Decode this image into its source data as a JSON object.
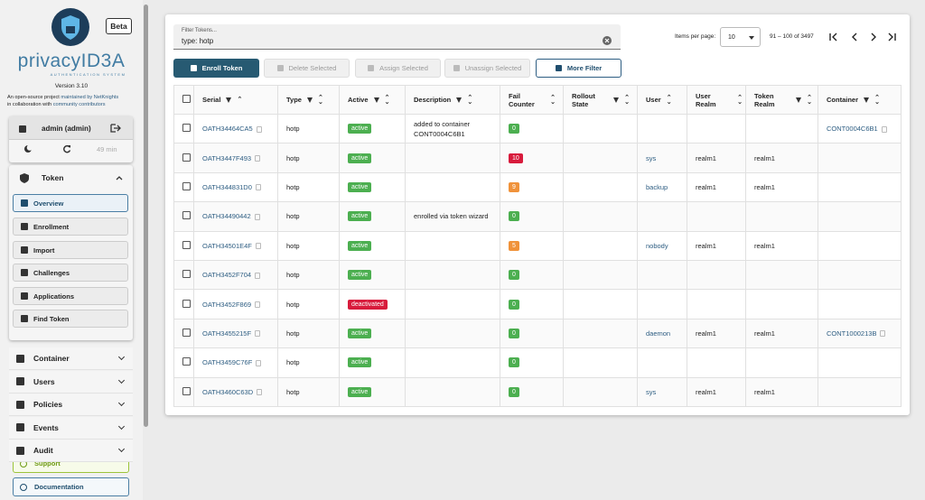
{
  "sidebar": {
    "beta": "Beta",
    "logo": "privacyID3A",
    "logo_subtitle": "AUTHENTICATION SYSTEM",
    "version": "Version 3.10",
    "about": {
      "text1": "An open-source project",
      "link1": "maintained by NetKnights",
      "text2": "in collaboration with",
      "link2": "community contributors"
    },
    "user": "admin (admin)",
    "session_timer": "49 min",
    "token_section": "Token",
    "token_items": [
      "Overview",
      "Enrollment",
      "Import",
      "Challenges",
      "Applications",
      "Find Token"
    ],
    "sections": [
      "Container",
      "Users",
      "Policies",
      "Events",
      "Audit"
    ],
    "support": "Support",
    "documentation": "Documentation"
  },
  "filter": {
    "label": "Filter Tokens...",
    "value": "type: hotp"
  },
  "pagination": {
    "items_per_page_label": "Items per page:",
    "items_per_page": "10",
    "range": "91 – 100 of 3497"
  },
  "actions": [
    "Enroll Token",
    "Delete Selected",
    "Assign Selected",
    "Unassign Selected",
    "More Filter"
  ],
  "table": {
    "columns": [
      "Serial",
      "Type",
      "Active",
      "Description",
      "Fail Counter",
      "Rollout State",
      "User",
      "User Realm",
      "Token Realm",
      "Container"
    ],
    "rows": [
      [
        "OATH34464CA5",
        "hotp",
        "active",
        "added to container CONT0004C6B1",
        0,
        null,
        null,
        null,
        null,
        "CONT0004C6B1"
      ],
      [
        "OATH3447F493",
        "hotp",
        "active",
        null,
        10,
        null,
        "sys",
        "realm1",
        "realm1",
        null
      ],
      [
        "OATH344831D0",
        "hotp",
        "active",
        null,
        9,
        null,
        "backup",
        "realm1",
        "realm1",
        null
      ],
      [
        "OATH34490442",
        "hotp",
        "active",
        "enrolled via token wizard",
        0,
        null,
        null,
        null,
        null,
        null
      ],
      [
        "OATH34501E4F",
        "hotp",
        "active",
        null,
        5,
        null,
        "nobody",
        "realm1",
        "realm1",
        null
      ],
      [
        "OATH3452F704",
        "hotp",
        "active",
        null,
        0,
        null,
        null,
        null,
        null,
        null
      ],
      [
        "OATH3452F869",
        "hotp",
        "deactivated",
        null,
        0,
        null,
        null,
        null,
        null,
        null
      ],
      [
        "OATH3455215F",
        "hotp",
        "active",
        null,
        0,
        null,
        "daemon",
        "realm1",
        "realm1",
        "CONT1000213B"
      ],
      [
        "OATH3459C76F",
        "hotp",
        "active",
        null,
        0,
        null,
        null,
        null,
        null,
        null
      ],
      [
        "OATH3460C63D",
        "hotp",
        "active",
        null,
        0,
        null,
        "sys",
        "realm1",
        "realm1",
        null
      ]
    ]
  }
}
